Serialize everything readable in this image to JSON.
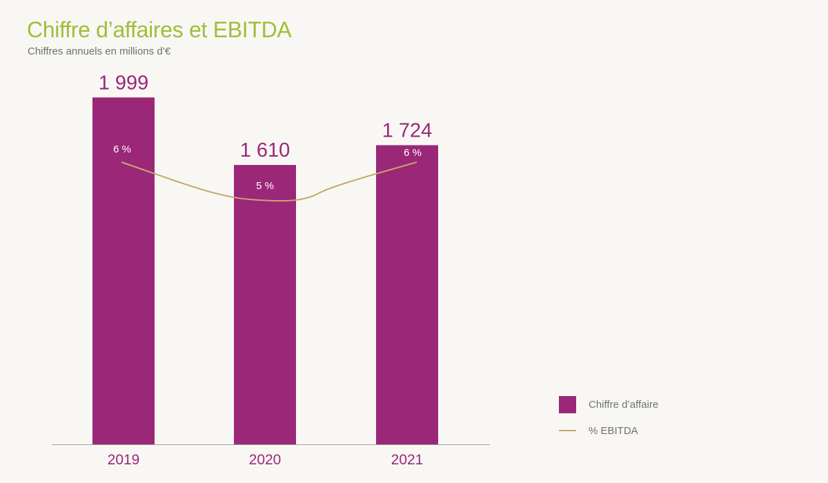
{
  "title": "Chiffre d’affaires et EBITDA",
  "subtitle": "Chiffres annuels en millions d’€",
  "colors": {
    "bar": "#9b2778",
    "line": "#c4a86a",
    "bar_value": "#9b2778",
    "pct_label": "#ffffff",
    "year_label": "#9b2778",
    "axis": "#a0a0a0"
  },
  "chart_data": {
    "type": "bar",
    "categories": [
      "2019",
      "2020",
      "2021"
    ],
    "series": [
      {
        "name": "Chiffre d’affaire",
        "type": "bar",
        "values": [
          1999,
          1610,
          1724
        ],
        "value_labels": [
          "1 999",
          "1 610",
          "1 724"
        ]
      },
      {
        "name": "% EBITDA",
        "type": "line",
        "values": [
          6,
          5,
          6
        ],
        "value_labels": [
          "6 %",
          "5 %",
          "6 %"
        ]
      }
    ],
    "title": "Chiffre d’affaires et EBITDA",
    "subtitle": "Chiffres annuels en millions d’€",
    "ylim": [
      0,
      2000
    ],
    "grid": false,
    "legend_position": "bottom-right"
  },
  "legend": [
    {
      "label": "Chiffre d’affaire",
      "kind": "bar"
    },
    {
      "label": "% EBITDA",
      "kind": "line"
    }
  ]
}
